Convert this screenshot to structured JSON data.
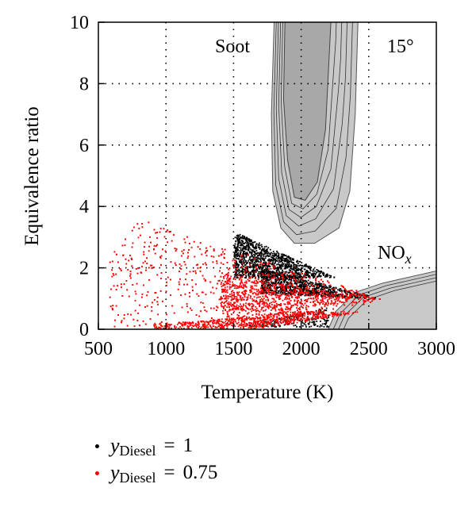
{
  "chart_data": {
    "type": "scatter",
    "xlabel": "Temperature (K)",
    "ylabel": "Equivalence ratio",
    "xlim": [
      500,
      3000
    ],
    "ylim": [
      0,
      10
    ],
    "x_ticks": [
      "500",
      "1000",
      "1500",
      "2000",
      "2500",
      "3000"
    ],
    "y_ticks": [
      "0",
      "2",
      "4",
      "6",
      "8",
      "10"
    ],
    "grid": "dotted",
    "annotations": {
      "soot": "Soot",
      "nox_main": "NO",
      "nox_sub": "x",
      "angle": "15°"
    },
    "regions": [
      {
        "label": "Soot",
        "type": "contour",
        "outer_boundary": [
          [
            1800,
            10
          ],
          [
            1780,
            7
          ],
          [
            1790,
            4.5
          ],
          [
            1850,
            3.3
          ],
          [
            1950,
            2.8
          ],
          [
            2100,
            2.8
          ],
          [
            2280,
            3.3
          ],
          [
            2360,
            4.5
          ],
          [
            2400,
            7
          ],
          [
            2420,
            10
          ]
        ],
        "core_boundary": [
          [
            1880,
            10
          ],
          [
            1870,
            7.5
          ],
          [
            1900,
            5.5
          ],
          [
            1950,
            4.3
          ],
          [
            2030,
            4.2
          ],
          [
            2120,
            4.8
          ],
          [
            2180,
            6.5
          ],
          [
            2220,
            10
          ]
        ]
      },
      {
        "label": "NOx",
        "type": "contour",
        "boundary": [
          [
            2200,
            0
          ],
          [
            2260,
            0.6
          ],
          [
            2400,
            1.2
          ],
          [
            2600,
            1.5
          ],
          [
            3000,
            1.9
          ],
          [
            3000,
            0
          ]
        ]
      }
    ],
    "series": [
      {
        "name": "yDiesel = 1",
        "color": "#000000",
        "clusters": [
          {
            "x_range": [
              1500,
              2300
            ],
            "y_range": [
              1.7,
              3.2
            ],
            "count": 1200
          },
          {
            "x_range": [
              1700,
              2600
            ],
            "y_range": [
              0.9,
              2.0
            ],
            "count": 900
          },
          {
            "x_range": [
              1600,
              2200
            ],
            "y_range": [
              0.1,
              0.8
            ],
            "count": 200
          }
        ]
      },
      {
        "name": "yDiesel = 0.75",
        "color": "#ff0000",
        "clusters": [
          {
            "x_range": [
              580,
              2600
            ],
            "y_range": [
              0.05,
              3.6
            ],
            "count": 1500
          },
          {
            "x_range": [
              900,
              2600
            ],
            "y_range": [
              0.05,
              0.6
            ],
            "count": 700
          },
          {
            "x_range": [
              1400,
              2600
            ],
            "y_range": [
              0.6,
              1.8
            ],
            "count": 600
          }
        ]
      }
    ]
  },
  "legend": [
    {
      "var": "y",
      "sub": "Diesel",
      "eq": "=",
      "value": "1",
      "color": "#000000"
    },
    {
      "var": "y",
      "sub": "Diesel",
      "eq": "=",
      "value": "0.75",
      "color": "#ff0000"
    }
  ]
}
